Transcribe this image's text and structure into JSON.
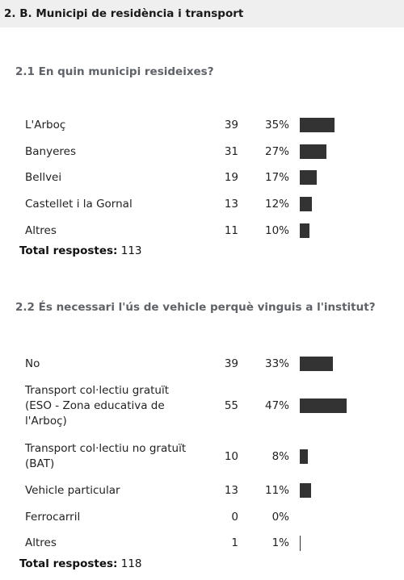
{
  "section": {
    "title": "2. B. Municipi de residència i transport"
  },
  "questions": [
    {
      "title": "2.1 En quin municipi resideixes?",
      "rows": [
        {
          "label": "L'Arboç",
          "count": "39",
          "pct": "35%",
          "value": 35
        },
        {
          "label": "Banyeres",
          "count": "31",
          "pct": "27%",
          "value": 27
        },
        {
          "label": "Bellvei",
          "count": "19",
          "pct": "17%",
          "value": 17
        },
        {
          "label": "Castellet i la Gornal",
          "count": "13",
          "pct": "12%",
          "value": 12
        },
        {
          "label": "Altres",
          "count": "11",
          "pct": "10%",
          "value": 10
        }
      ],
      "total_label": "Total respostes:",
      "total_value": "113"
    },
    {
      "title": "2.2 És necessari l'ús de vehicle perquè vinguis a l'institut?",
      "rows": [
        {
          "label": "No",
          "count": "39",
          "pct": "33%",
          "value": 33
        },
        {
          "label": "Transport col·lectiu gratuït (ESO - Zona educativa de l'Arboç)",
          "count": "55",
          "pct": "47%",
          "value": 47
        },
        {
          "label": "Transport col·lectiu no gratuït (BAT)",
          "count": "10",
          "pct": "8%",
          "value": 8
        },
        {
          "label": "Vehicle particular",
          "count": "13",
          "pct": "11%",
          "value": 11
        },
        {
          "label": "Ferrocarril",
          "count": "0",
          "pct": "0%",
          "value": 0
        },
        {
          "label": "Altres",
          "count": "1",
          "pct": "1%",
          "value": 1
        }
      ],
      "total_label": "Total respostes:",
      "total_value": "118"
    }
  ]
}
